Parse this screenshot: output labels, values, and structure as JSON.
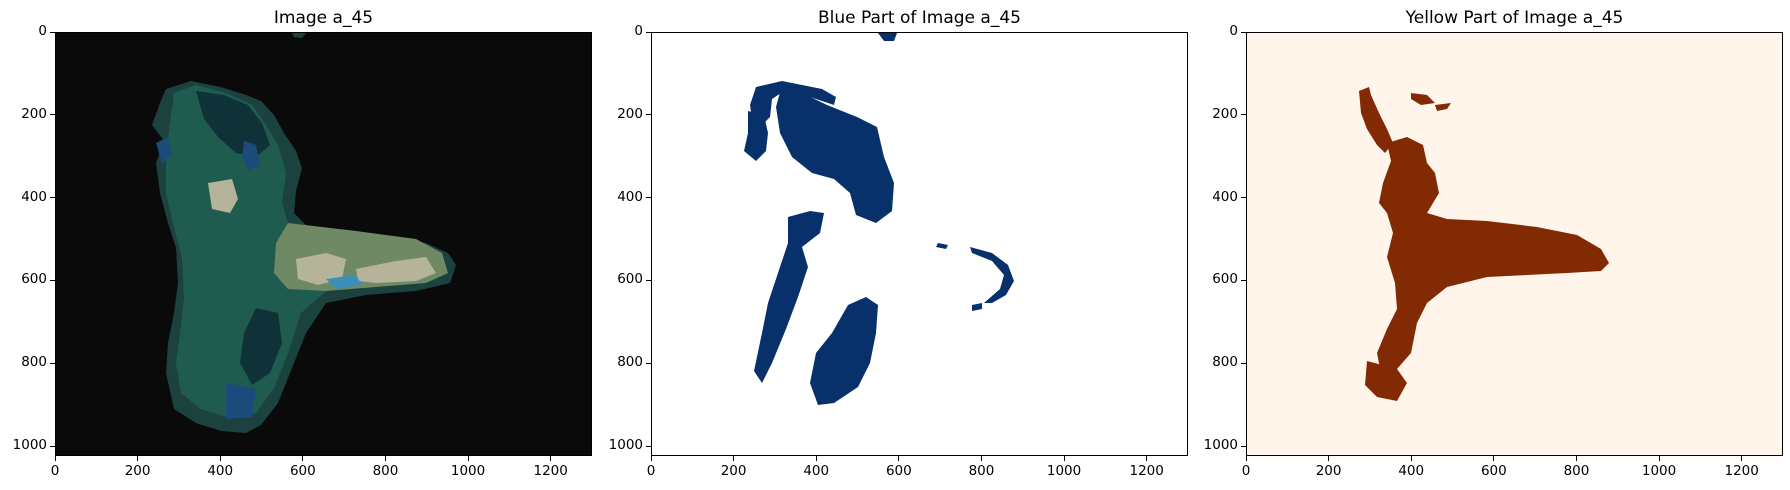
{
  "panels": [
    {
      "title": "Image a_45",
      "colors": {
        "bg": "#0a0a0a",
        "shell": "#1c4240",
        "mid": "#1f5c4f",
        "dark": "#0f3238",
        "blue": "#1c4a7a",
        "light": "#6f8965",
        "pale": "#b5b49a",
        "accent": "#3b8fb8"
      }
    },
    {
      "title": "Blue Part of Image a_45",
      "colors": {
        "bg": "#ffffff",
        "fg": "#08306b"
      }
    },
    {
      "title": "Yellow Part of Image a_45",
      "colors": {
        "bg": "#fff5eb",
        "fg": "#822a04"
      }
    }
  ],
  "axes": {
    "x_ticks": [
      "0",
      "200",
      "400",
      "600",
      "800",
      "1000",
      "1200"
    ],
    "y_ticks": [
      "0",
      "200",
      "400",
      "600",
      "800",
      "1000"
    ]
  }
}
